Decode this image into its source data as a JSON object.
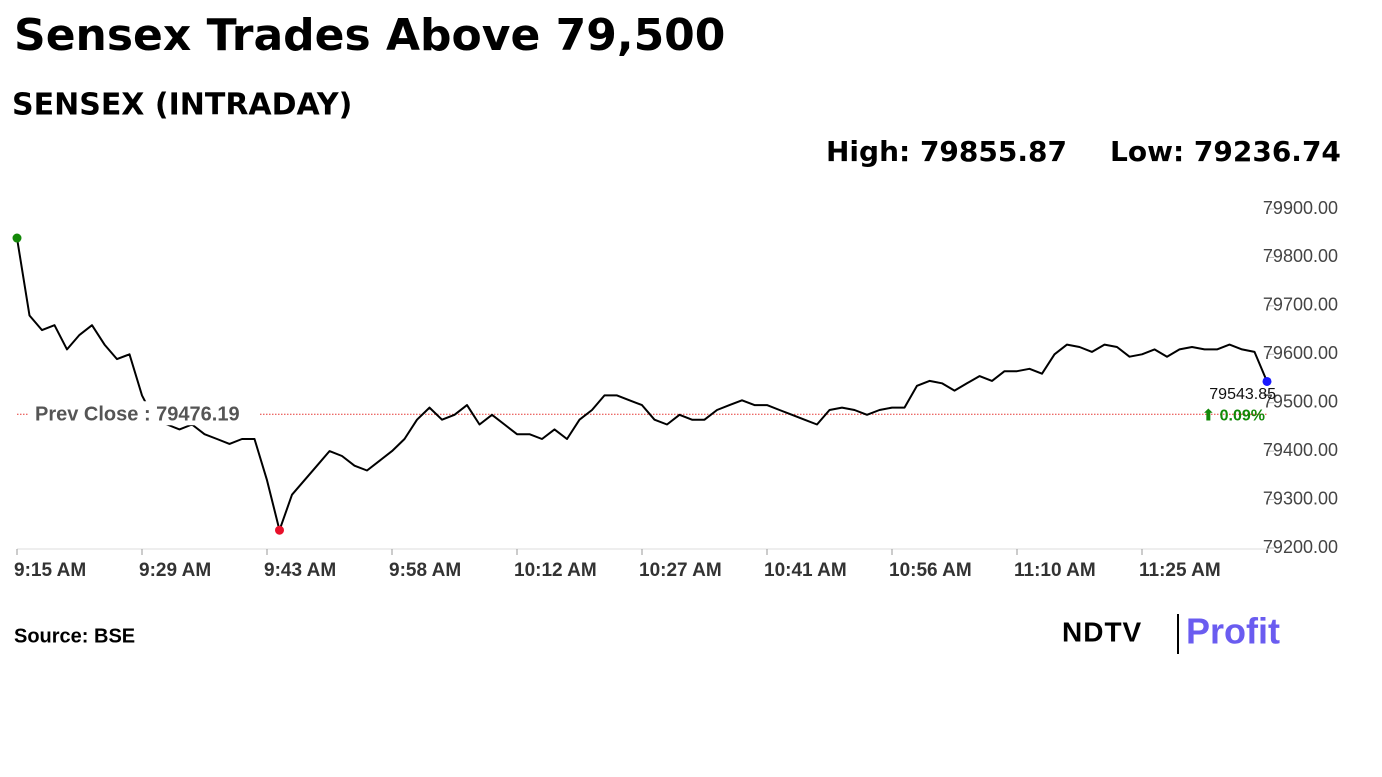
{
  "chart_data": {
    "type": "line",
    "title": "Sensex Trades Above 79,500",
    "subtitle": "SENSEX (INTRADAY)",
    "high": {
      "value": 79855.87,
      "label": "High: 79855.87"
    },
    "low": {
      "value": 79236.74,
      "label": "Low: 79236.74"
    },
    "reference": {
      "value": 79476.19,
      "label": "Prev Close : 79476.19",
      "color": "#e53935"
    },
    "change_label": "⬆ 0.09%",
    "source": "Source: BSE",
    "logo": [
      "NDTV",
      "Profit"
    ],
    "categories": [
      "9:15 AM",
      null,
      null,
      null,
      null,
      null,
      null,
      null,
      null,
      null,
      "9:29 AM",
      null,
      null,
      null,
      null,
      null,
      null,
      null,
      null,
      null,
      "9:43 AM",
      null,
      null,
      null,
      null,
      null,
      null,
      null,
      null,
      null,
      "9:58 AM",
      null,
      null,
      null,
      null,
      null,
      null,
      null,
      null,
      null,
      "10:12 AM",
      null,
      null,
      null,
      null,
      null,
      null,
      null,
      null,
      null,
      "10:27 AM",
      null,
      null,
      null,
      null,
      null,
      null,
      null,
      null,
      null,
      "10:41 AM",
      null,
      null,
      null,
      null,
      null,
      null,
      null,
      null,
      null,
      "10:56 AM",
      null,
      null,
      null,
      null,
      null,
      null,
      null,
      null,
      null,
      "11:10 AM",
      null,
      null,
      null,
      null,
      null,
      null,
      null,
      null,
      null,
      "11:25 AM",
      null,
      null,
      null,
      null,
      null,
      null,
      null,
      null,
      null,
      null
    ],
    "series": [
      {
        "name": "SENSEX",
        "color": "#000000",
        "values": [
          79840,
          79680,
          79650,
          79660,
          79610,
          79640,
          79660,
          79620,
          79590,
          79600,
          79515,
          79465,
          79455,
          79445,
          79455,
          79435,
          79425,
          79415,
          79425,
          79425,
          79340,
          79236.74,
          79310,
          79340,
          79370,
          79400,
          79390,
          79370,
          79360,
          79380,
          79400,
          79425,
          79465,
          79490,
          79465,
          79475,
          79495,
          79455,
          79475,
          79455,
          79435,
          79435,
          79425,
          79445,
          79425,
          79465,
          79485,
          79515,
          79515,
          79505,
          79495,
          79465,
          79455,
          79475,
          79465,
          79465,
          79485,
          79495,
          79505,
          79495,
          79495,
          79485,
          79475,
          79465,
          79455,
          79485,
          79490,
          79485,
          79475,
          79485,
          79490,
          79490,
          79535,
          79545,
          79540,
          79525,
          79540,
          79555,
          79545,
          79565,
          79565,
          79570,
          79560,
          79600,
          79620,
          79615,
          79605,
          79620,
          79615,
          79595,
          79600,
          79610,
          79595,
          79610,
          79615,
          79610,
          79610,
          79620,
          79610,
          79605,
          79543.85
        ],
        "value_labels": {
          "100": "79543.85"
        }
      }
    ],
    "markers": [
      {
        "index": 0,
        "color": "#138808"
      },
      {
        "index": 21,
        "color": "#e8102a"
      },
      {
        "index": 100,
        "color": "#1a1aff"
      }
    ],
    "ylim": [
      79200,
      79900
    ],
    "yticks": [
      {
        "value": 79200,
        "label": "79200.00"
      },
      {
        "value": 79300,
        "label": "79300.00"
      },
      {
        "value": 79400,
        "label": "79400.00"
      },
      {
        "value": 79500,
        "label": "79500.00"
      },
      {
        "value": 79600,
        "label": "79600.00"
      },
      {
        "value": 79700,
        "label": "79700.00"
      },
      {
        "value": 79800,
        "label": "79800.00"
      },
      {
        "value": 79900,
        "label": "79900.00"
      }
    ]
  }
}
